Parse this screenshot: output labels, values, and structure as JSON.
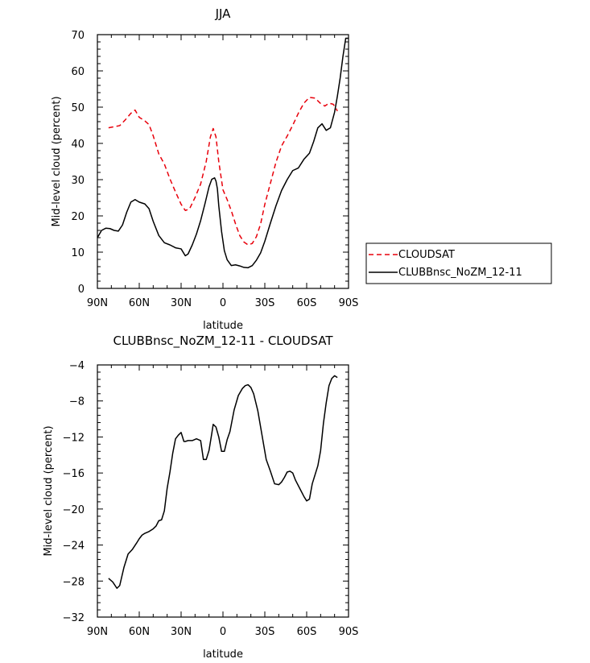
{
  "chart_data": [
    {
      "type": "line",
      "title": "JJA",
      "xlabel": "latitude",
      "ylabel": "Mid-level cloud (percent)",
      "xlim": [
        -90,
        90
      ],
      "ylim": [
        0,
        70
      ],
      "x_ticks": [
        -90,
        -60,
        -30,
        0,
        30,
        60,
        90
      ],
      "x_tick_labels": [
        "90N",
        "60N",
        "30N",
        "0",
        "30S",
        "60S",
        "90S"
      ],
      "y_ticks": [
        0,
        10,
        20,
        30,
        40,
        50,
        60,
        70
      ],
      "y_tick_labels": [
        "0",
        "10",
        "20",
        "30",
        "40",
        "50",
        "60",
        "70"
      ],
      "legend_position": "right",
      "series": [
        {
          "name": "CLOUDSAT",
          "color": "#e8000b",
          "dash": "dashed",
          "x": [
            -82,
            -78,
            -74,
            -70,
            -66,
            -63,
            -60,
            -56,
            -53,
            -50,
            -46,
            -42,
            -38,
            -34,
            -30,
            -27,
            -24,
            -20,
            -16,
            -12,
            -9,
            -7,
            -5,
            -3,
            0,
            3,
            6,
            9,
            12,
            15,
            18,
            21,
            24,
            27,
            30,
            34,
            38,
            42,
            46,
            50,
            54,
            58,
            62,
            66,
            70,
            73,
            76,
            79,
            81,
            82
          ],
          "y": [
            44.3,
            44.6,
            44.9,
            46.5,
            48.3,
            49.2,
            47.2,
            46.2,
            45.2,
            42.1,
            37.1,
            34.3,
            30.2,
            26.6,
            23.2,
            21.5,
            21.9,
            25.1,
            28.8,
            35.0,
            41.8,
            44.1,
            41.8,
            35.0,
            27.2,
            24.5,
            21.4,
            17.8,
            14.6,
            12.8,
            12.0,
            12.4,
            14.3,
            17.8,
            23.2,
            29.0,
            34.8,
            39.3,
            42.0,
            45.0,
            48.3,
            51.1,
            52.7,
            52.5,
            51.0,
            50.3,
            51.1,
            50.8,
            49.7,
            48.9
          ]
        },
        {
          "name": "CLUBBnsc_NoZM_12-11",
          "color": "#000000",
          "dash": "solid",
          "x": [
            -90,
            -87,
            -84,
            -81,
            -78,
            -75,
            -72,
            -69,
            -66,
            -63,
            -60,
            -56,
            -53,
            -50,
            -46,
            -42,
            -38,
            -34,
            -30,
            -27,
            -25,
            -22,
            -19,
            -16,
            -13,
            -10,
            -8,
            -6,
            -5,
            -4,
            -3,
            -1,
            1,
            3,
            6,
            9,
            12,
            15,
            18,
            21,
            24,
            27,
            30,
            34,
            38,
            42,
            46,
            50,
            54,
            58,
            62,
            65,
            68,
            71,
            74,
            77,
            80,
            82,
            84,
            86,
            88,
            90
          ],
          "y": [
            14.0,
            16.0,
            16.6,
            16.5,
            16.0,
            15.8,
            17.5,
            21.0,
            23.8,
            24.5,
            23.8,
            23.3,
            22.0,
            18.5,
            14.6,
            12.6,
            12.0,
            11.2,
            10.9,
            9.0,
            9.5,
            12.0,
            15.0,
            18.7,
            23.2,
            28.0,
            30.1,
            30.5,
            29.6,
            27.5,
            22.8,
            15.7,
            10.4,
            7.9,
            6.3,
            6.5,
            6.2,
            5.8,
            5.7,
            6.3,
            7.8,
            9.8,
            13.0,
            18.0,
            22.8,
            27.0,
            30.0,
            32.5,
            33.2,
            35.6,
            37.3,
            40.5,
            44.3,
            45.4,
            43.6,
            44.3,
            48.6,
            53.0,
            58.0,
            64.0,
            69.0,
            69.0
          ]
        }
      ]
    },
    {
      "type": "line",
      "title": "CLUBBnsc_NoZM_12-11 - CLOUDSAT",
      "xlabel": "latitude",
      "ylabel": "Mid-level cloud (percent)",
      "xlim": [
        -90,
        90
      ],
      "ylim": [
        -32,
        -4
      ],
      "x_ticks": [
        -90,
        -60,
        -30,
        0,
        30,
        60,
        90
      ],
      "x_tick_labels": [
        "90N",
        "60N",
        "30N",
        "0",
        "30S",
        "60S",
        "90S"
      ],
      "y_ticks": [
        -32,
        -28,
        -24,
        -20,
        -16,
        -12,
        -8,
        -4
      ],
      "y_tick_labels": [
        "−32",
        "−28",
        "−24",
        "−20",
        "−16",
        "−12",
        "−8",
        "−4"
      ],
      "series": [
        {
          "color": "#000000",
          "dash": "solid",
          "x": [
            -82,
            -79,
            -76,
            -74,
            -71,
            -68,
            -65,
            -62,
            -60,
            -58,
            -56,
            -53,
            -50,
            -48,
            -46,
            -44,
            -42,
            -40,
            -38,
            -36,
            -34,
            -32,
            -30,
            -28,
            -27,
            -25,
            -22,
            -19,
            -16,
            -14,
            -12,
            -10,
            -8,
            -7,
            -5,
            -3,
            -1,
            1,
            3,
            5,
            8,
            11,
            14,
            16,
            18,
            20,
            22,
            25,
            28,
            31,
            34,
            37,
            40,
            42,
            44,
            46,
            48,
            50,
            52,
            55,
            58,
            60,
            62,
            64,
            66,
            68,
            70,
            72,
            74,
            76,
            78,
            80,
            82
          ],
          "y": [
            -27.7,
            -28.1,
            -28.8,
            -28.5,
            -26.5,
            -25.0,
            -24.5,
            -23.8,
            -23.3,
            -22.9,
            -22.7,
            -22.5,
            -22.2,
            -21.9,
            -21.3,
            -21.2,
            -20.2,
            -17.7,
            -15.9,
            -13.8,
            -12.2,
            -11.8,
            -11.5,
            -12.5,
            -12.5,
            -12.4,
            -12.4,
            -12.2,
            -12.4,
            -14.5,
            -14.5,
            -13.5,
            -11.6,
            -10.6,
            -10.9,
            -12.0,
            -13.6,
            -13.6,
            -12.3,
            -11.4,
            -9.0,
            -7.4,
            -6.6,
            -6.3,
            -6.2,
            -6.5,
            -7.2,
            -9.1,
            -11.8,
            -14.5,
            -15.8,
            -17.2,
            -17.3,
            -17.0,
            -16.5,
            -15.9,
            -15.8,
            -16.0,
            -16.8,
            -17.7,
            -18.6,
            -19.1,
            -18.9,
            -17.2,
            -16.2,
            -15.2,
            -13.5,
            -10.5,
            -8.2,
            -6.3,
            -5.5,
            -5.2,
            -5.4
          ]
        }
      ]
    }
  ]
}
